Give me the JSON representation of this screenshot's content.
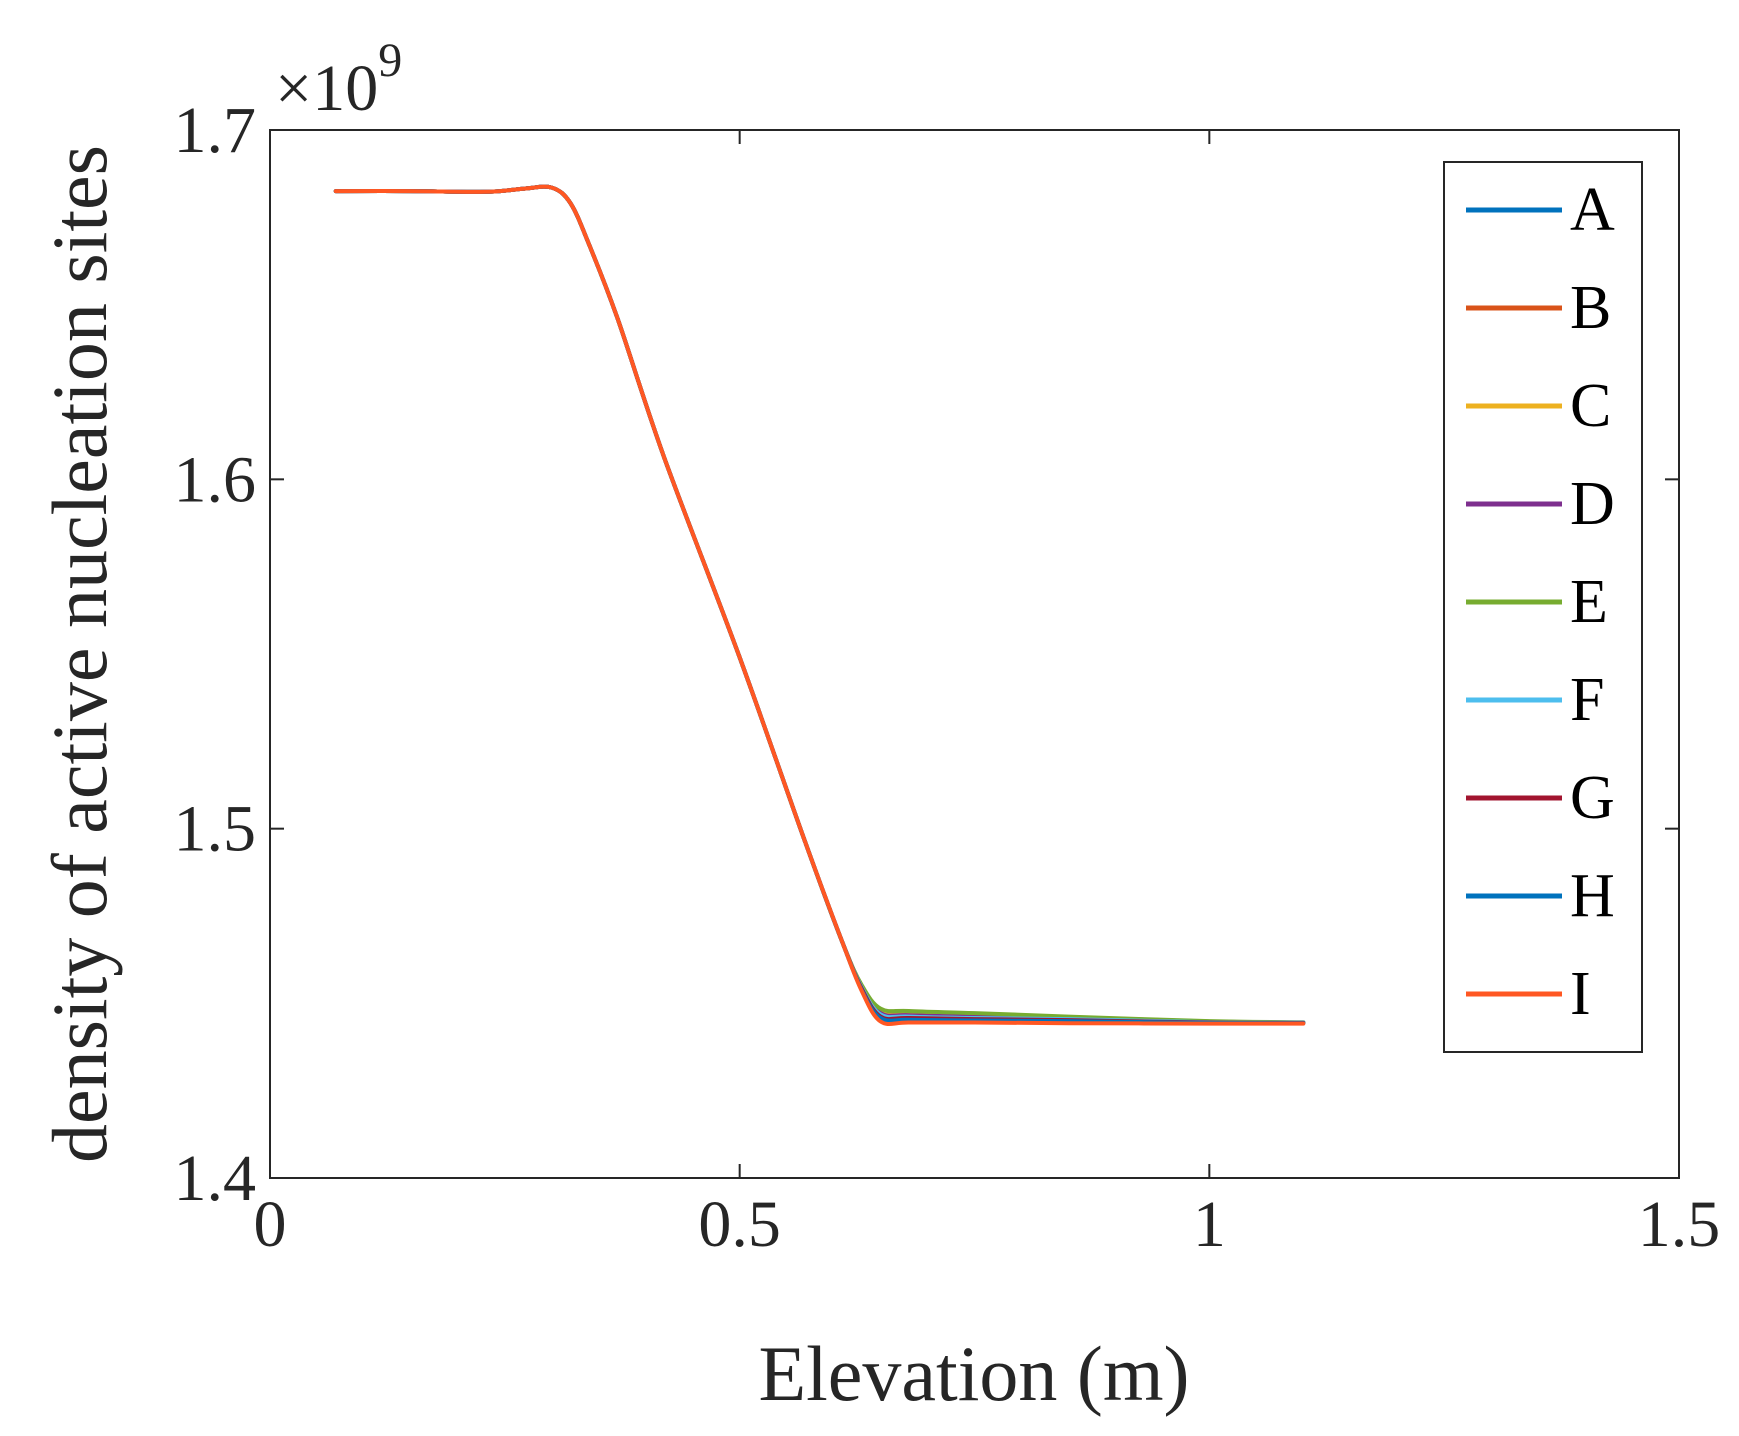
{
  "chart_data": {
    "type": "line",
    "title": "",
    "xlabel": "Elevation (m)",
    "ylabel": "density of active nucleation sites",
    "y_exponent": {
      "base": "×10",
      "power": "9"
    },
    "xlim": [
      0,
      1.5
    ],
    "ylim": [
      1.4,
      1.7
    ],
    "xticks": [
      0,
      0.5,
      1,
      1.5
    ],
    "xtick_labels": [
      "0",
      "0.5",
      "1",
      "1.5"
    ],
    "yticks": [
      1.4,
      1.5,
      1.6,
      1.7
    ],
    "ytick_labels": [
      "1.4",
      "1.5",
      "1.6",
      "1.7"
    ],
    "grid": false,
    "legend_position": "top-right",
    "x": [
      0.07,
      0.15,
      0.23,
      0.27,
      0.3,
      0.32,
      0.34,
      0.37,
      0.42,
      0.5,
      0.57,
      0.61,
      0.63,
      0.65,
      0.68,
      0.75,
      0.85,
      1.0,
      1.1
    ],
    "series": [
      {
        "name": "A",
        "color": "#0072BD",
        "values": [
          1.6825,
          1.6825,
          1.6823,
          1.6832,
          1.6835,
          1.679,
          1.667,
          1.646,
          1.606,
          1.549,
          1.496,
          1.467,
          1.455,
          1.448,
          1.447,
          1.4465,
          1.446,
          1.4448,
          1.4445
        ]
      },
      {
        "name": "B",
        "color": "#D95319",
        "values": [
          1.6825,
          1.6825,
          1.6823,
          1.6832,
          1.6835,
          1.679,
          1.667,
          1.646,
          1.606,
          1.549,
          1.496,
          1.467,
          1.455,
          1.4478,
          1.447,
          1.4465,
          1.446,
          1.4448,
          1.4445
        ]
      },
      {
        "name": "C",
        "color": "#EDB120",
        "values": [
          1.6825,
          1.6825,
          1.6823,
          1.6832,
          1.6835,
          1.679,
          1.667,
          1.646,
          1.606,
          1.549,
          1.496,
          1.467,
          1.455,
          1.4475,
          1.4468,
          1.4463,
          1.4458,
          1.4447,
          1.4445
        ]
      },
      {
        "name": "D",
        "color": "#7E2F8E",
        "values": [
          1.6825,
          1.6825,
          1.6823,
          1.6832,
          1.6835,
          1.679,
          1.667,
          1.646,
          1.606,
          1.549,
          1.496,
          1.467,
          1.4548,
          1.4472,
          1.4466,
          1.4462,
          1.4457,
          1.4447,
          1.4445
        ]
      },
      {
        "name": "E",
        "color": "#77AC30",
        "values": [
          1.6825,
          1.6825,
          1.6823,
          1.6832,
          1.6835,
          1.679,
          1.667,
          1.646,
          1.606,
          1.549,
          1.496,
          1.467,
          1.4552,
          1.4485,
          1.4478,
          1.4472,
          1.4462,
          1.4449,
          1.4446
        ]
      },
      {
        "name": "F",
        "color": "#4DBEEE",
        "values": [
          1.6825,
          1.6825,
          1.6823,
          1.6832,
          1.6835,
          1.679,
          1.667,
          1.646,
          1.606,
          1.549,
          1.496,
          1.467,
          1.4545,
          1.4468,
          1.4462,
          1.4458,
          1.4455,
          1.4446,
          1.4445
        ]
      },
      {
        "name": "G",
        "color": "#A2142F",
        "values": [
          1.6825,
          1.6825,
          1.6823,
          1.6832,
          1.6835,
          1.679,
          1.667,
          1.646,
          1.606,
          1.549,
          1.496,
          1.467,
          1.4542,
          1.4462,
          1.4458,
          1.4455,
          1.4452,
          1.4445,
          1.4444
        ]
      },
      {
        "name": "H",
        "color": "#0072BD",
        "values": [
          1.6825,
          1.6825,
          1.6823,
          1.6832,
          1.6835,
          1.679,
          1.667,
          1.646,
          1.606,
          1.549,
          1.496,
          1.467,
          1.4538,
          1.4458,
          1.4453,
          1.4451,
          1.4449,
          1.4444,
          1.4443
        ]
      },
      {
        "name": "I",
        "color": "#FF5722",
        "values": [
          1.6825,
          1.6825,
          1.6823,
          1.6832,
          1.6835,
          1.679,
          1.667,
          1.646,
          1.606,
          1.549,
          1.496,
          1.467,
          1.4535,
          1.4448,
          1.4445,
          1.4445,
          1.4443,
          1.4442,
          1.4442
        ]
      }
    ]
  }
}
